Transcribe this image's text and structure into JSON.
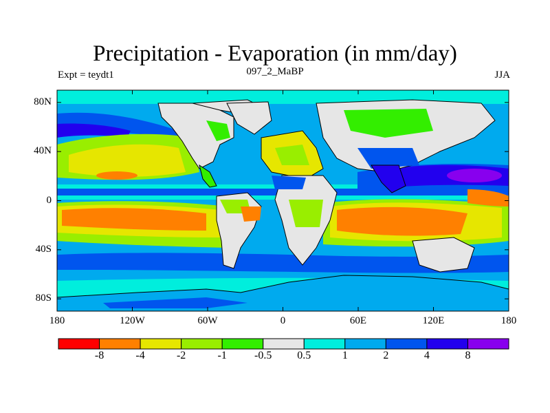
{
  "title": "Precipitation - Evaporation (in mm/day)",
  "experiment": "Expt = teydt1",
  "subtitle": "097_2_MaBP",
  "season": "JJA",
  "lat_labels": [
    {
      "label": "80N",
      "lat": 80
    },
    {
      "label": "40N",
      "lat": 40
    },
    {
      "label": "0",
      "lat": 0
    },
    {
      "label": "40S",
      "lat": -40
    },
    {
      "label": "80S",
      "lat": -80
    }
  ],
  "lon_labels": [
    {
      "label": "180",
      "lon": -180
    },
    {
      "label": "120W",
      "lon": -120
    },
    {
      "label": "60W",
      "lon": -60
    },
    {
      "label": "0",
      "lon": 0
    },
    {
      "label": "60E",
      "lon": 60
    },
    {
      "label": "120E",
      "lon": 120
    },
    {
      "label": "180",
      "lon": 180
    }
  ],
  "colorbar": {
    "colors": [
      "#ff0000",
      "#ff8000",
      "#e6e600",
      "#99ee00",
      "#33ee00",
      "#e6e6e6",
      "#00eedd",
      "#00aaee",
      "#0055ee",
      "#2200ee",
      "#8800ee"
    ],
    "labels": [
      "-8",
      "-4",
      "-2",
      "-1",
      "-0.5",
      "0.5",
      "1",
      "2",
      "4",
      "8"
    ]
  }
}
